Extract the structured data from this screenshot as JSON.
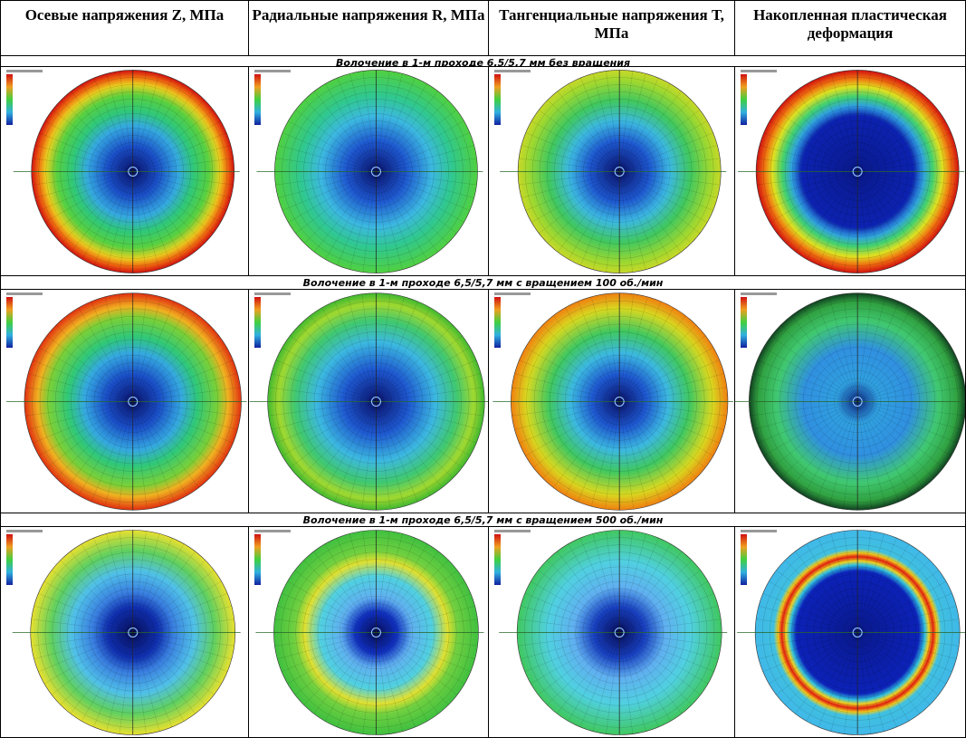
{
  "table": {
    "headers": [
      "Осевые напряжения Z, МПа",
      "Радиальные напряжения R, МПа",
      "Тангенциальные напряжения Т, МПа",
      "Накопленная пластическая деформация"
    ],
    "sections": [
      {
        "title": "Волочение в 1-м проходе 6,5/5,7 мм без вращения"
      },
      {
        "title": "Волочение в 1-м проходе 6,5/5,7 мм с вращением 100 об./мин"
      },
      {
        "title": "Волочение в 1-м проходе 6,5/5,7 мм с вращением 500 об./мин"
      }
    ]
  }
}
